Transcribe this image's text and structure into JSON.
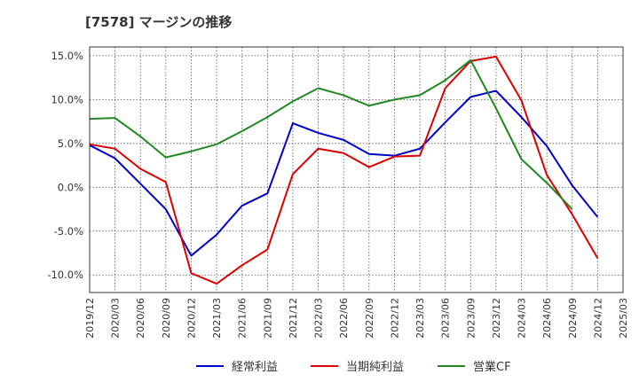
{
  "chart_data": {
    "type": "line",
    "title": "[7578]  マージンの推移",
    "x": [
      "2019/12",
      "2020/03",
      "2020/06",
      "2020/09",
      "2020/12",
      "2021/03",
      "2021/06",
      "2021/09",
      "2021/12",
      "2022/03",
      "2022/06",
      "2022/09",
      "2022/12",
      "2023/03",
      "2023/06",
      "2023/09",
      "2023/12",
      "2024/03",
      "2024/06",
      "2024/09",
      "2024/12",
      "2025/03"
    ],
    "y_ticks": [
      "15.0%",
      "10.0%",
      "5.0%",
      "0.0%",
      "-5.0%",
      "-10.0%"
    ],
    "ylim": [
      -12.0,
      16.0
    ],
    "grid": true,
    "legend_position": "bottom",
    "series": [
      {
        "name": "経常利益",
        "color": "#0000cc",
        "values": [
          4.8,
          3.3,
          0.4,
          -2.5,
          -7.8,
          -5.4,
          -2.1,
          -0.7,
          7.3,
          6.2,
          5.4,
          3.8,
          3.6,
          4.4,
          7.4,
          10.3,
          11.0,
          8.0,
          4.7,
          0.2,
          -3.4,
          null
        ]
      },
      {
        "name": "当期純利益",
        "color": "#dd0000",
        "values": [
          4.9,
          4.4,
          2.1,
          0.6,
          -9.8,
          -11.0,
          -8.9,
          -7.1,
          1.5,
          4.4,
          3.9,
          2.3,
          3.5,
          3.6,
          11.3,
          14.4,
          14.9,
          9.9,
          1.4,
          -3.1,
          -8.1,
          null
        ]
      },
      {
        "name": "営業CF",
        "color": "#228822",
        "values": [
          7.8,
          7.9,
          5.8,
          3.4,
          4.1,
          4.9,
          6.4,
          8.0,
          9.8,
          11.3,
          10.5,
          9.3,
          10.0,
          10.5,
          12.2,
          14.5,
          9.0,
          3.2,
          0.5,
          -2.5,
          null,
          null
        ]
      }
    ]
  }
}
